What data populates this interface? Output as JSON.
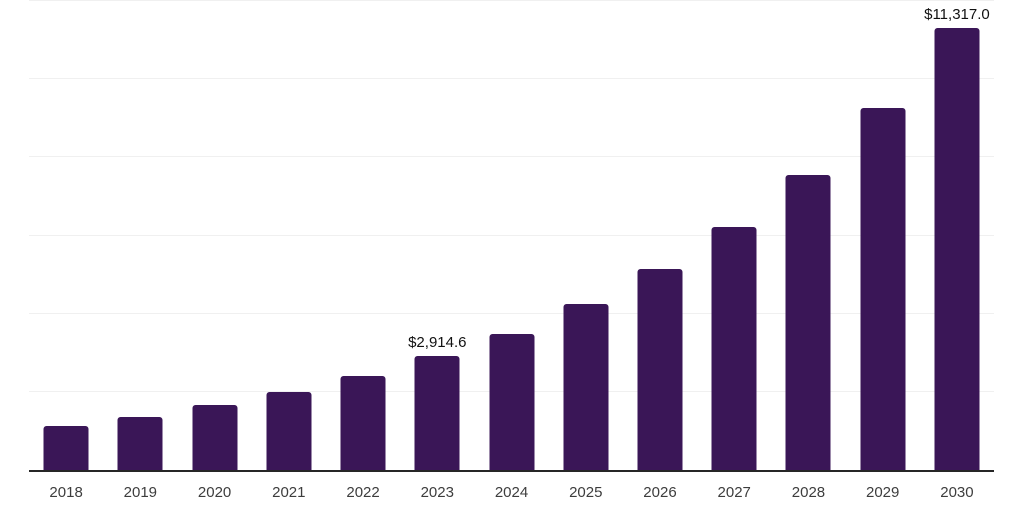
{
  "chart_data": {
    "type": "bar",
    "title": "",
    "xlabel": "",
    "ylabel": "",
    "categories": [
      "2018",
      "2019",
      "2020",
      "2021",
      "2022",
      "2023",
      "2024",
      "2025",
      "2026",
      "2027",
      "2028",
      "2029",
      "2030"
    ],
    "values": [
      1125,
      1350,
      1670,
      1995,
      2410,
      2914.6,
      3480,
      4240,
      5135,
      6225,
      7550,
      9255,
      11317.0
    ],
    "labeled_points": [
      {
        "category": "2023",
        "label": "$2,914.6"
      },
      {
        "category": "2030",
        "label": "$11,317.0"
      }
    ],
    "ylim": [
      0,
      12000
    ],
    "gridline_step": 2000,
    "grid": "horizontal",
    "y_axis_labels_visible": false,
    "legend_position": "none",
    "colors": {
      "bar": "#3a1657",
      "axis_line": "#262626",
      "gridline": "#f0f0f0",
      "tick_label": "#3d3d3d",
      "data_label": "#111111",
      "background": "#ffffff"
    }
  }
}
